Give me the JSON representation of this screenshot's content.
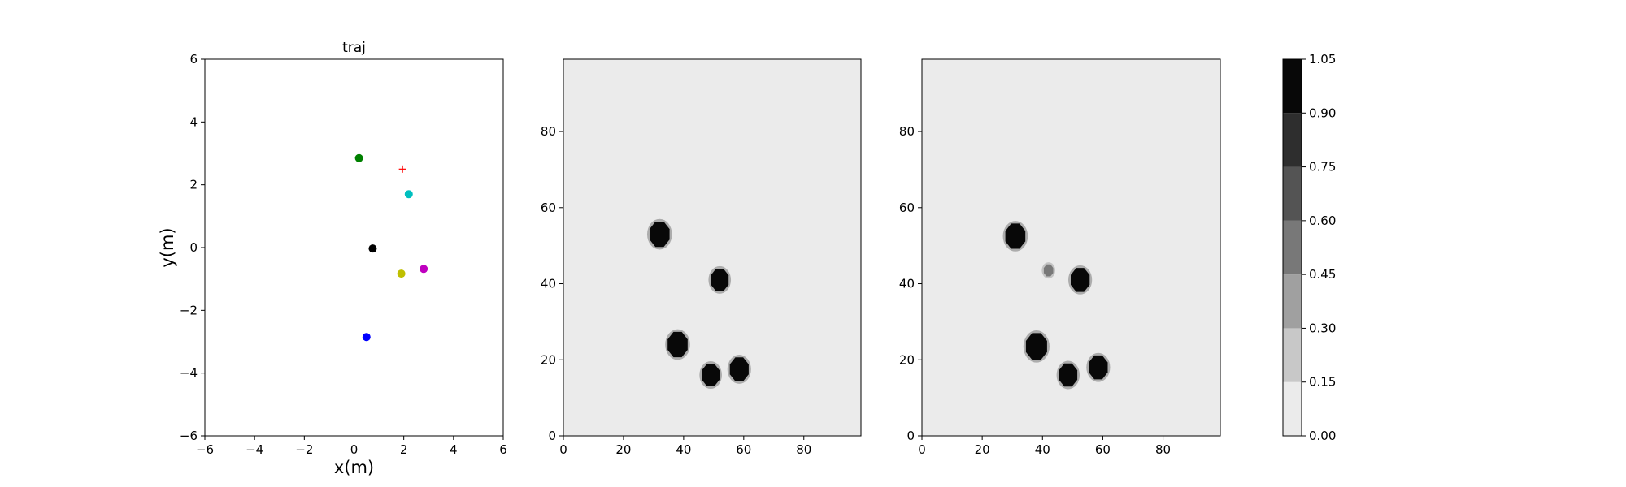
{
  "chart_data": [
    {
      "type": "scatter",
      "title": "traj",
      "xlabel": "x(m)",
      "ylabel": "y(m)",
      "xlim": [
        -6,
        6
      ],
      "ylim": [
        -6,
        6
      ],
      "xticks": [
        -6,
        -4,
        -2,
        0,
        2,
        4,
        6
      ],
      "yticks": [
        -6,
        -4,
        -2,
        0,
        2,
        4,
        6
      ],
      "xtick_labels": [
        "−6",
        "−4",
        "−2",
        "0",
        "2",
        "4",
        "6"
      ],
      "ytick_labels": [
        "−6",
        "−4",
        "−2",
        "0",
        "2",
        "4",
        "6"
      ],
      "points": [
        {
          "x": 0.2,
          "y": 2.85,
          "color": "#008000",
          "marker": "circle"
        },
        {
          "x": 2.2,
          "y": 1.7,
          "color": "#00bfbf",
          "marker": "circle"
        },
        {
          "x": 0.75,
          "y": -0.03,
          "color": "#000000",
          "marker": "circle"
        },
        {
          "x": 1.9,
          "y": -0.83,
          "color": "#bfbf00",
          "marker": "circle"
        },
        {
          "x": 2.8,
          "y": -0.68,
          "color": "#bf00bf",
          "marker": "circle"
        },
        {
          "x": 0.5,
          "y": -2.85,
          "color": "#0000ff",
          "marker": "circle"
        },
        {
          "x": 1.95,
          "y": 2.5,
          "color": "#ff0000",
          "marker": "plus"
        }
      ]
    },
    {
      "type": "heatmap",
      "xlim": [
        0,
        99
      ],
      "ylim": [
        0,
        99
      ],
      "xticks": [
        0,
        20,
        40,
        60,
        80
      ],
      "yticks": [
        0,
        20,
        40,
        60,
        80
      ],
      "background_value": 0.05,
      "blobs": [
        {
          "x": 32,
          "y": 53,
          "r": 3.6,
          "value": 1.0
        },
        {
          "x": 52,
          "y": 41,
          "r": 3.2,
          "value": 1.0
        },
        {
          "x": 38,
          "y": 24,
          "r": 3.6,
          "value": 1.0
        },
        {
          "x": 49,
          "y": 16,
          "r": 3.2,
          "value": 1.0
        },
        {
          "x": 58.5,
          "y": 17.5,
          "r": 3.4,
          "value": 1.0
        }
      ]
    },
    {
      "type": "heatmap",
      "xlim": [
        0,
        99
      ],
      "ylim": [
        0,
        99
      ],
      "xticks": [
        0,
        20,
        40,
        60,
        80
      ],
      "yticks": [
        0,
        20,
        40,
        60,
        80
      ],
      "background_value": 0.05,
      "blobs": [
        {
          "x": 31,
          "y": 52.5,
          "r": 3.6,
          "value": 1.0
        },
        {
          "x": 42,
          "y": 43.5,
          "r": 1.7,
          "value": 0.45
        },
        {
          "x": 52.5,
          "y": 41,
          "r": 3.4,
          "value": 1.0
        },
        {
          "x": 38,
          "y": 23.5,
          "r": 3.8,
          "value": 1.0
        },
        {
          "x": 48.5,
          "y": 16,
          "r": 3.3,
          "value": 1.0
        },
        {
          "x": 58.5,
          "y": 18,
          "r": 3.4,
          "value": 1.0
        }
      ]
    }
  ],
  "colorbar": {
    "levels": [
      0.0,
      0.15,
      0.3,
      0.45,
      0.6,
      0.75,
      0.9,
      1.05
    ],
    "tick_labels": [
      "0.00",
      "0.15",
      "0.30",
      "0.45",
      "0.60",
      "0.75",
      "0.90",
      "1.05"
    ],
    "colors": [
      "#ebebeb",
      "#c8c8c8",
      "#a0a0a0",
      "#787878",
      "#545454",
      "#2e2e2e",
      "#080808"
    ]
  }
}
